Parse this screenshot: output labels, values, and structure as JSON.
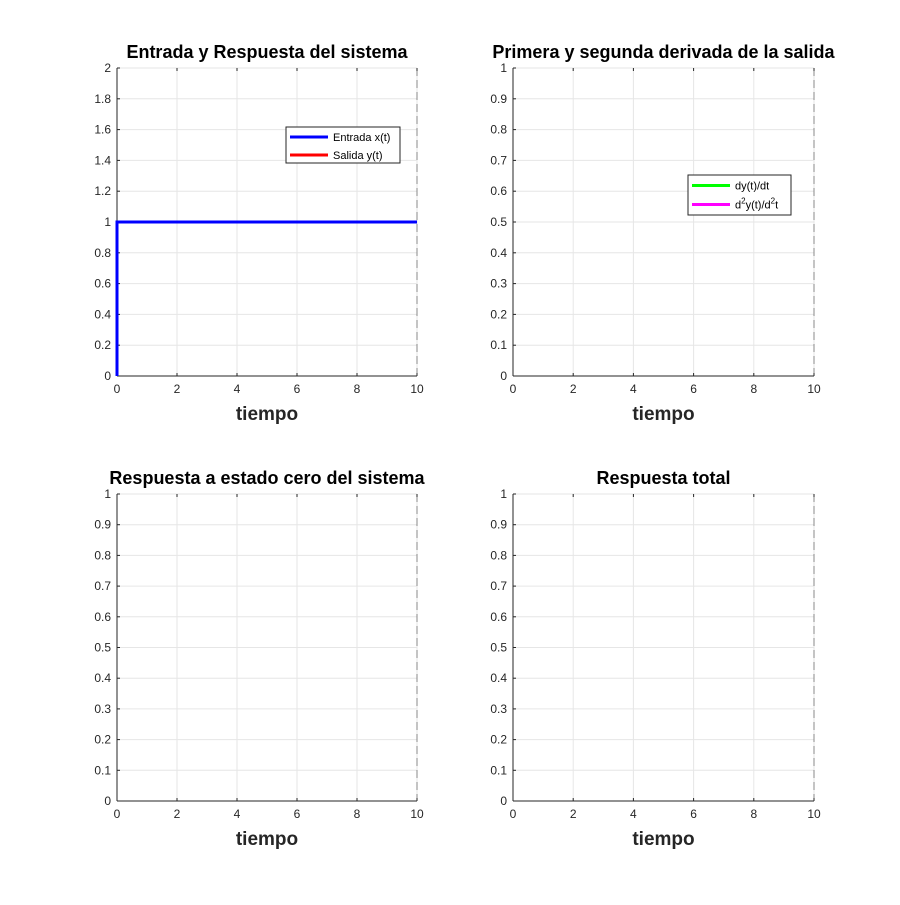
{
  "colors": {
    "entrada": "#0000ff",
    "salida": "#ff0000",
    "primera_derivada": "#00ff00",
    "segunda_derivada": "#ff00ff",
    "grid": "#e6e6e6",
    "axis": "#262626"
  },
  "chart_data": [
    {
      "type": "line",
      "title": "Entrada y Respuesta del sistema",
      "xlabel": "tiempo",
      "ylabel": "",
      "xlim": [
        0,
        10
      ],
      "ylim": [
        0,
        2
      ],
      "xticks": [
        0,
        2,
        4,
        6,
        8,
        10
      ],
      "yticks": [
        0,
        0.2,
        0.4,
        0.6,
        0.8,
        1,
        1.2,
        1.4,
        1.6,
        1.8,
        2
      ],
      "grid": true,
      "legend_position": "top-right",
      "series": [
        {
          "name": "Entrada x(t)",
          "color": "#0000ff",
          "x": [
            0,
            0,
            10
          ],
          "y": [
            0,
            1,
            1
          ]
        },
        {
          "name": "Salida y(t)",
          "color": "#ff0000",
          "x": [],
          "y": []
        }
      ]
    },
    {
      "type": "line",
      "title": "Primera y segunda derivada de la salida",
      "xlabel": "tiempo",
      "ylabel": "",
      "xlim": [
        0,
        10
      ],
      "ylim": [
        0,
        1
      ],
      "xticks": [
        0,
        2,
        4,
        6,
        8,
        10
      ],
      "yticks": [
        0,
        0.1,
        0.2,
        0.3,
        0.4,
        0.5,
        0.6,
        0.7,
        0.8,
        0.9,
        1
      ],
      "grid": true,
      "legend_position": "right",
      "series": [
        {
          "name": "dy(t)/dt",
          "color": "#00ff00",
          "x": [],
          "y": []
        },
        {
          "name_parts": [
            "d",
            "2",
            "y(t)/d",
            "2",
            "t"
          ],
          "color": "#ff00ff",
          "x": [],
          "y": []
        }
      ]
    },
    {
      "type": "line",
      "title": "Respuesta a estado cero del sistema",
      "xlabel": "tiempo",
      "ylabel": "",
      "xlim": [
        0,
        10
      ],
      "ylim": [
        0,
        1
      ],
      "xticks": [
        0,
        2,
        4,
        6,
        8,
        10
      ],
      "yticks": [
        0,
        0.1,
        0.2,
        0.3,
        0.4,
        0.5,
        0.6,
        0.7,
        0.8,
        0.9,
        1
      ],
      "grid": true,
      "series": []
    },
    {
      "type": "line",
      "title": "Respuesta total",
      "xlabel": "tiempo",
      "ylabel": "",
      "xlim": [
        0,
        10
      ],
      "ylim": [
        0,
        1
      ],
      "xticks": [
        0,
        2,
        4,
        6,
        8,
        10
      ],
      "yticks": [
        0,
        0.1,
        0.2,
        0.3,
        0.4,
        0.5,
        0.6,
        0.7,
        0.8,
        0.9,
        1
      ],
      "grid": true,
      "series": []
    }
  ]
}
